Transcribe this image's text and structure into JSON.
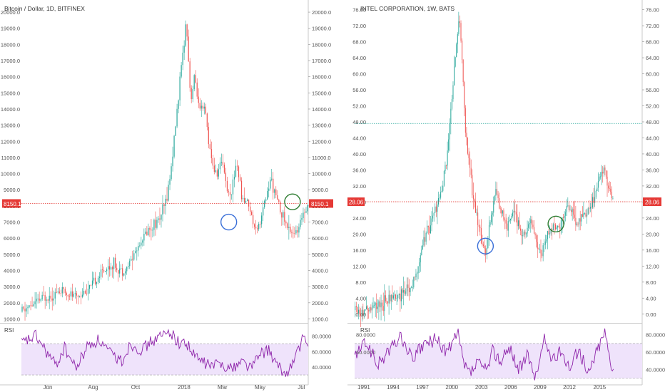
{
  "chart_data": [
    {
      "type": "candlestick",
      "title": "Bitcoin / Dollar, 1D, BITFINEX",
      "ylim": [
        800,
        20400
      ],
      "y_ticks": [
        1000,
        2000,
        3000,
        4000,
        5000,
        6000,
        7000,
        8000,
        9000,
        10000,
        11000,
        12000,
        13000,
        14000,
        15000,
        16000,
        17000,
        18000,
        19000,
        20000
      ],
      "y_tick_labels": [
        "1000.0",
        "2000.0",
        "3000.0",
        "4000.0",
        "5000.0",
        "6000.0",
        "7000.0",
        "8000.0",
        "9000.0",
        "10000.0",
        "11000.0",
        "12000.0",
        "13000.0",
        "14000.0",
        "15000.0",
        "16000.0",
        "17000.0",
        "18000.0",
        "19000.0",
        "20000.0"
      ],
      "x_ticks": [
        {
          "label": "Jun",
          "pos": 0.092
        },
        {
          "label": "Aug",
          "pos": 0.25
        },
        {
          "label": "Oct",
          "pos": 0.398
        },
        {
          "label": "2018",
          "pos": 0.567
        },
        {
          "label": "Mar",
          "pos": 0.701
        },
        {
          "label": "May",
          "pos": 0.832
        },
        {
          "label": "Jul",
          "pos": 0.976
        }
      ],
      "price_keypoints": [
        [
          0,
          1450
        ],
        [
          0.08,
          2350
        ],
        [
          0.14,
          2700
        ],
        [
          0.19,
          2400
        ],
        [
          0.24,
          2900
        ],
        [
          0.28,
          3900
        ],
        [
          0.32,
          4400
        ],
        [
          0.36,
          3900
        ],
        [
          0.4,
          5300
        ],
        [
          0.44,
          6500
        ],
        [
          0.48,
          7200
        ],
        [
          0.5,
          8000
        ],
        [
          0.52,
          10000
        ],
        [
          0.54,
          13500
        ],
        [
          0.56,
          17000
        ],
        [
          0.575,
          19600
        ],
        [
          0.59,
          14500
        ],
        [
          0.605,
          16000
        ],
        [
          0.62,
          13800
        ],
        [
          0.64,
          14000
        ],
        [
          0.66,
          11000
        ],
        [
          0.68,
          9800
        ],
        [
          0.7,
          11000
        ],
        [
          0.72,
          8700
        ],
        [
          0.735,
          9100
        ],
        [
          0.75,
          10800
        ],
        [
          0.77,
          8400
        ],
        [
          0.79,
          8300
        ],
        [
          0.81,
          6800
        ],
        [
          0.83,
          6800
        ],
        [
          0.85,
          8300
        ],
        [
          0.87,
          9700
        ],
        [
          0.89,
          8400
        ],
        [
          0.91,
          7500
        ],
        [
          0.93,
          6500
        ],
        [
          0.95,
          6400
        ],
        [
          0.965,
          6300
        ],
        [
          0.98,
          7600
        ],
        [
          1.0,
          8150
        ]
      ],
      "current_price": 8150.1,
      "current_price_label": "8150.1",
      "colors": {
        "up": "#26a69a",
        "down": "#ef5350",
        "price_line": "#e53935",
        "price_tag": "#e53935"
      },
      "annotations": [
        {
          "shape": "circle",
          "color": "#3a6fd8",
          "x_frac": 0.723,
          "price": 7000
        },
        {
          "shape": "circle",
          "color": "#2e7d32",
          "x_frac": 0.945,
          "price": 8250
        }
      ],
      "rsi": {
        "label": "RSI",
        "ylim": [
          20,
          95
        ],
        "band": [
          30,
          70
        ],
        "ticks": [
          40,
          60,
          80
        ],
        "tick_labels": [
          "40.0000",
          "60.0000",
          "80.0000"
        ],
        "keypoints": [
          [
            0,
            70
          ],
          [
            0.05,
            80
          ],
          [
            0.09,
            58
          ],
          [
            0.12,
            42
          ],
          [
            0.15,
            65
          ],
          [
            0.19,
            38
          ],
          [
            0.23,
            67
          ],
          [
            0.27,
            75
          ],
          [
            0.31,
            57
          ],
          [
            0.35,
            48
          ],
          [
            0.38,
            70
          ],
          [
            0.42,
            62
          ],
          [
            0.45,
            72
          ],
          [
            0.49,
            80
          ],
          [
            0.52,
            86
          ],
          [
            0.55,
            70
          ],
          [
            0.575,
            72
          ],
          [
            0.6,
            55
          ],
          [
            0.63,
            47
          ],
          [
            0.66,
            42
          ],
          [
            0.7,
            45
          ],
          [
            0.73,
            38
          ],
          [
            0.77,
            48
          ],
          [
            0.8,
            40
          ],
          [
            0.83,
            55
          ],
          [
            0.86,
            63
          ],
          [
            0.89,
            42
          ],
          [
            0.92,
            30
          ],
          [
            0.95,
            48
          ],
          [
            0.98,
            76
          ],
          [
            1.0,
            67
          ]
        ]
      }
    },
    {
      "type": "candlestick",
      "title": "INTEL CORPORATION, 1W, BATS",
      "ylim": [
        -2,
        77
      ],
      "y_ticks": [
        0,
        4,
        8,
        12,
        16,
        20,
        24,
        28,
        32,
        36,
        40,
        44,
        48,
        52,
        56,
        60,
        64,
        68,
        72,
        76
      ],
      "y_tick_labels": [
        "0.00",
        "4.00",
        "8.00",
        "12.00",
        "16.00",
        "20.00",
        "24.00",
        "28.00",
        "32.00",
        "36.00",
        "40.00",
        "44.00",
        "48.00",
        "52.00",
        "56.00",
        "60.00",
        "64.00",
        "68.00",
        "72.00",
        "76.00"
      ],
      "x_ticks": [
        {
          "label": "1991",
          "pos": 0.032
        },
        {
          "label": "1994",
          "pos": 0.134
        },
        {
          "label": "1997",
          "pos": 0.236
        },
        {
          "label": "2000",
          "pos": 0.338
        },
        {
          "label": "2003",
          "pos": 0.441
        },
        {
          "label": "2006",
          "pos": 0.543
        },
        {
          "label": "2009",
          "pos": 0.645
        },
        {
          "label": "2012",
          "pos": 0.747
        },
        {
          "label": "2015",
          "pos": 0.852
        }
      ],
      "price_keypoints": [
        [
          0,
          1
        ],
        [
          0.04,
          1.2
        ],
        [
          0.08,
          2
        ],
        [
          0.12,
          3.5
        ],
        [
          0.16,
          5
        ],
        [
          0.2,
          7
        ],
        [
          0.22,
          12
        ],
        [
          0.24,
          18
        ],
        [
          0.26,
          22
        ],
        [
          0.28,
          26
        ],
        [
          0.3,
          30
        ],
        [
          0.32,
          38
        ],
        [
          0.34,
          55
        ],
        [
          0.355,
          68
        ],
        [
          0.365,
          74
        ],
        [
          0.375,
          62
        ],
        [
          0.385,
          46
        ],
        [
          0.4,
          36
        ],
        [
          0.42,
          26
        ],
        [
          0.44,
          19
        ],
        [
          0.455,
          15
        ],
        [
          0.47,
          22
        ],
        [
          0.49,
          31
        ],
        [
          0.51,
          26
        ],
        [
          0.53,
          21
        ],
        [
          0.55,
          26
        ],
        [
          0.57,
          23
        ],
        [
          0.59,
          20
        ],
        [
          0.61,
          24
        ],
        [
          0.63,
          19
        ],
        [
          0.65,
          14
        ],
        [
          0.67,
          20
        ],
        [
          0.69,
          22
        ],
        [
          0.71,
          21
        ],
        [
          0.73,
          25
        ],
        [
          0.75,
          27
        ],
        [
          0.77,
          22
        ],
        [
          0.79,
          24
        ],
        [
          0.81,
          26
        ],
        [
          0.83,
          28
        ],
        [
          0.85,
          34
        ],
        [
          0.865,
          37
        ],
        [
          0.88,
          33
        ],
        [
          0.9,
          28
        ]
      ],
      "current_price": 28.06,
      "current_price_label": "28.06",
      "reference_level": 47.6,
      "colors": {
        "up": "#26a69a",
        "down": "#ef5350",
        "price_line": "#e53935",
        "price_tag": "#e53935",
        "reference_line": "#26a69a"
      },
      "annotations": [
        {
          "shape": "circle",
          "color": "#3a6fd8",
          "x_frac": 0.455,
          "price": 17
        },
        {
          "shape": "circle",
          "color": "#2e7d32",
          "x_frac": 0.7,
          "price": 22.5
        }
      ],
      "rsi": {
        "label": "RSI",
        "ylim": [
          25,
          92
        ],
        "band": [
          30,
          70
        ],
        "ticks": [
          40,
          60,
          80
        ],
        "tick_labels": [
          "40.0000",
          "60.0000",
          "80.0000"
        ],
        "keypoints": [
          [
            0,
            55
          ],
          [
            0.04,
            72
          ],
          [
            0.08,
            45
          ],
          [
            0.12,
            62
          ],
          [
            0.16,
            78
          ],
          [
            0.2,
            52
          ],
          [
            0.24,
            68
          ],
          [
            0.28,
            75
          ],
          [
            0.32,
            60
          ],
          [
            0.36,
            80
          ],
          [
            0.38,
            45
          ],
          [
            0.4,
            36
          ],
          [
            0.43,
            48
          ],
          [
            0.46,
            38
          ],
          [
            0.48,
            62
          ],
          [
            0.51,
            50
          ],
          [
            0.54,
            66
          ],
          [
            0.57,
            40
          ],
          [
            0.6,
            55
          ],
          [
            0.63,
            32
          ],
          [
            0.66,
            75
          ],
          [
            0.69,
            50
          ],
          [
            0.72,
            62
          ],
          [
            0.75,
            42
          ],
          [
            0.78,
            65
          ],
          [
            0.81,
            33
          ],
          [
            0.84,
            60
          ],
          [
            0.87,
            84
          ],
          [
            0.89,
            50
          ],
          [
            0.9,
            42
          ]
        ]
      }
    }
  ]
}
